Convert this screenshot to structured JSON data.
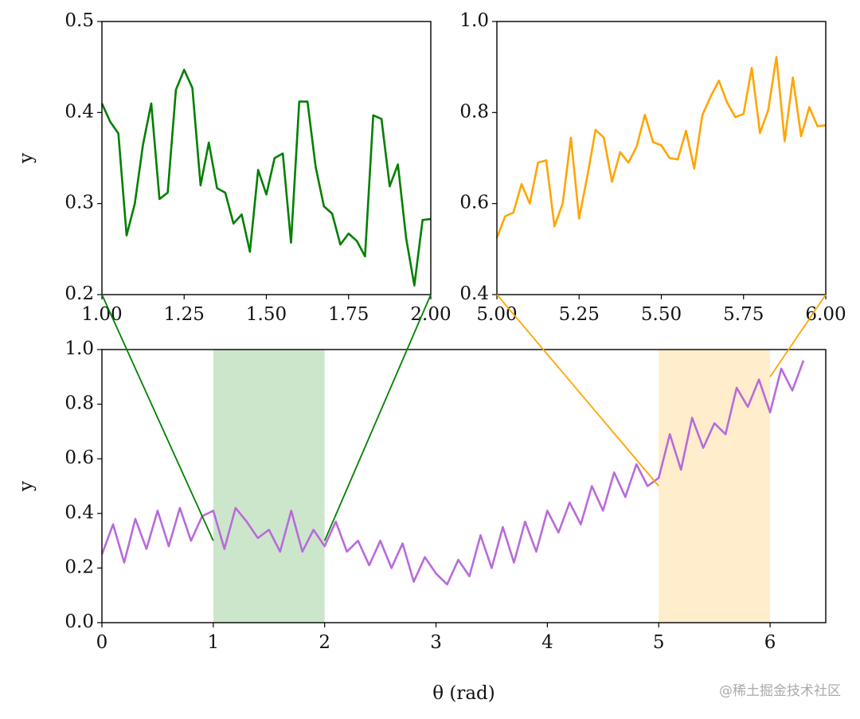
{
  "chart_data": [
    {
      "type": "line",
      "ylabel": "y",
      "xlim": [
        1,
        2
      ],
      "ylim": [
        0.2,
        0.5
      ],
      "xticks": [
        {
          "value": 1,
          "label": "1.00"
        },
        {
          "value": 1.25,
          "label": "1.25"
        },
        {
          "value": 1.5,
          "label": "1.50"
        },
        {
          "value": 1.75,
          "label": "1.75"
        },
        {
          "value": 2,
          "label": "2.00"
        }
      ],
      "yticks": [
        0.2,
        0.3,
        0.4,
        0.5
      ],
      "color": "#008000",
      "x": [
        1,
        1.025,
        1.05,
        1.075,
        1.1,
        1.125,
        1.15,
        1.175,
        1.2,
        1.225,
        1.25,
        1.275,
        1.3,
        1.325,
        1.35,
        1.375,
        1.4,
        1.425,
        1.45,
        1.475,
        1.5,
        1.525,
        1.55,
        1.575,
        1.6,
        1.625,
        1.65,
        1.675,
        1.7,
        1.725,
        1.75,
        1.775,
        1.8,
        1.825,
        1.85,
        1.875,
        1.9,
        1.925,
        1.95,
        1.975,
        2
      ],
      "values": [
        0.41,
        0.39,
        0.377,
        0.265,
        0.3,
        0.365,
        0.41,
        0.305,
        0.312,
        0.425,
        0.447,
        0.427,
        0.32,
        0.367,
        0.317,
        0.312,
        0.278,
        0.288,
        0.247,
        0.337,
        0.31,
        0.35,
        0.355,
        0.257,
        0.412,
        0.412,
        0.34,
        0.297,
        0.289,
        0.255,
        0.267,
        0.259,
        0.242,
        0.397,
        0.393,
        0.319,
        0.343,
        0.262,
        0.21,
        0.282,
        0.283
      ]
    },
    {
      "type": "line",
      "xlim": [
        5,
        6
      ],
      "ylim": [
        0.4,
        1.0
      ],
      "xticks": [
        {
          "value": 5,
          "label": "5.00"
        },
        {
          "value": 5.25,
          "label": "5.25"
        },
        {
          "value": 5.5,
          "label": "5.50"
        },
        {
          "value": 5.75,
          "label": "5.75"
        },
        {
          "value": 6,
          "label": "6.00"
        }
      ],
      "yticks": [
        0.4,
        0.6,
        0.8,
        {
          "value": 1,
          "label": "1.0"
        }
      ],
      "color": "#ffa500",
      "x": [
        5,
        5.025,
        5.05,
        5.075,
        5.1,
        5.125,
        5.15,
        5.175,
        5.2,
        5.225,
        5.25,
        5.275,
        5.3,
        5.325,
        5.35,
        5.375,
        5.4,
        5.425,
        5.45,
        5.475,
        5.5,
        5.525,
        5.55,
        5.575,
        5.6,
        5.625,
        5.65,
        5.675,
        5.7,
        5.725,
        5.75,
        5.775,
        5.8,
        5.825,
        5.85,
        5.875,
        5.9,
        5.925,
        5.95,
        5.975,
        6
      ],
      "values": [
        0.525,
        0.572,
        0.58,
        0.643,
        0.6,
        0.69,
        0.695,
        0.55,
        0.6,
        0.745,
        0.567,
        0.66,
        0.762,
        0.745,
        0.648,
        0.713,
        0.69,
        0.725,
        0.795,
        0.735,
        0.728,
        0.7,
        0.697,
        0.76,
        0.677,
        0.795,
        0.835,
        0.87,
        0.822,
        0.79,
        0.797,
        0.898,
        0.755,
        0.805,
        0.922,
        0.737,
        0.877,
        0.748,
        0.812,
        0.77,
        0.772
      ]
    },
    {
      "type": "line",
      "xlabel": "θ (rad)",
      "ylabel": "y",
      "xlim": [
        0,
        6.5
      ],
      "ylim": [
        0,
        1.0
      ],
      "xticks": [
        0,
        1,
        2,
        3,
        4,
        5,
        6
      ],
      "yticks": [
        {
          "value": 0,
          "label": "0.0"
        },
        0.2,
        0.4,
        0.6,
        0.8,
        {
          "value": 1,
          "label": "1.0"
        }
      ],
      "color": "#b86bd9",
      "x": [
        0,
        0.1,
        0.2,
        0.3,
        0.4,
        0.5,
        0.6,
        0.7,
        0.8,
        0.9,
        1,
        1.1,
        1.2,
        1.3,
        1.4,
        1.5,
        1.6,
        1.7,
        1.8,
        1.9,
        2,
        2.1,
        2.2,
        2.3,
        2.4,
        2.5,
        2.6,
        2.7,
        2.8,
        2.9,
        3,
        3.1,
        3.2,
        3.3,
        3.4,
        3.5,
        3.6,
        3.7,
        3.8,
        3.9,
        4,
        4.1,
        4.2,
        4.3,
        4.4,
        4.5,
        4.6,
        4.7,
        4.8,
        4.9,
        5,
        5.1,
        5.2,
        5.3,
        5.4,
        5.5,
        5.6,
        5.7,
        5.8,
        5.9,
        6,
        6.1,
        6.2,
        6.3
      ],
      "values": [
        0.25,
        0.36,
        0.22,
        0.38,
        0.27,
        0.41,
        0.28,
        0.42,
        0.3,
        0.39,
        0.41,
        0.27,
        0.42,
        0.37,
        0.31,
        0.34,
        0.26,
        0.41,
        0.26,
        0.34,
        0.28,
        0.37,
        0.26,
        0.3,
        0.21,
        0.3,
        0.2,
        0.29,
        0.15,
        0.24,
        0.18,
        0.14,
        0.23,
        0.17,
        0.32,
        0.2,
        0.35,
        0.22,
        0.37,
        0.26,
        0.41,
        0.33,
        0.44,
        0.36,
        0.5,
        0.41,
        0.55,
        0.46,
        0.58,
        0.5,
        0.53,
        0.69,
        0.56,
        0.75,
        0.64,
        0.73,
        0.69,
        0.86,
        0.79,
        0.89,
        0.77,
        0.93,
        0.85,
        0.96
      ],
      "spans": [
        {
          "xmin": 1,
          "xmax": 2,
          "color": "#008000"
        },
        {
          "xmin": 5,
          "xmax": 6,
          "color": "#ffa500"
        }
      ],
      "connectors": [
        {
          "inset": 0,
          "side": "left",
          "color": "#008000",
          "to": [
            1,
            0.3
          ]
        },
        {
          "inset": 0,
          "side": "right",
          "color": "#008000",
          "to": [
            2,
            0.3
          ]
        },
        {
          "inset": 1,
          "side": "left",
          "color": "#ffa500",
          "to": [
            5,
            0.5
          ]
        },
        {
          "inset": 1,
          "side": "right",
          "color": "#ffa500",
          "to": [
            6,
            0.9
          ]
        }
      ]
    }
  ],
  "watermark": "@稀土掘金技术社区"
}
